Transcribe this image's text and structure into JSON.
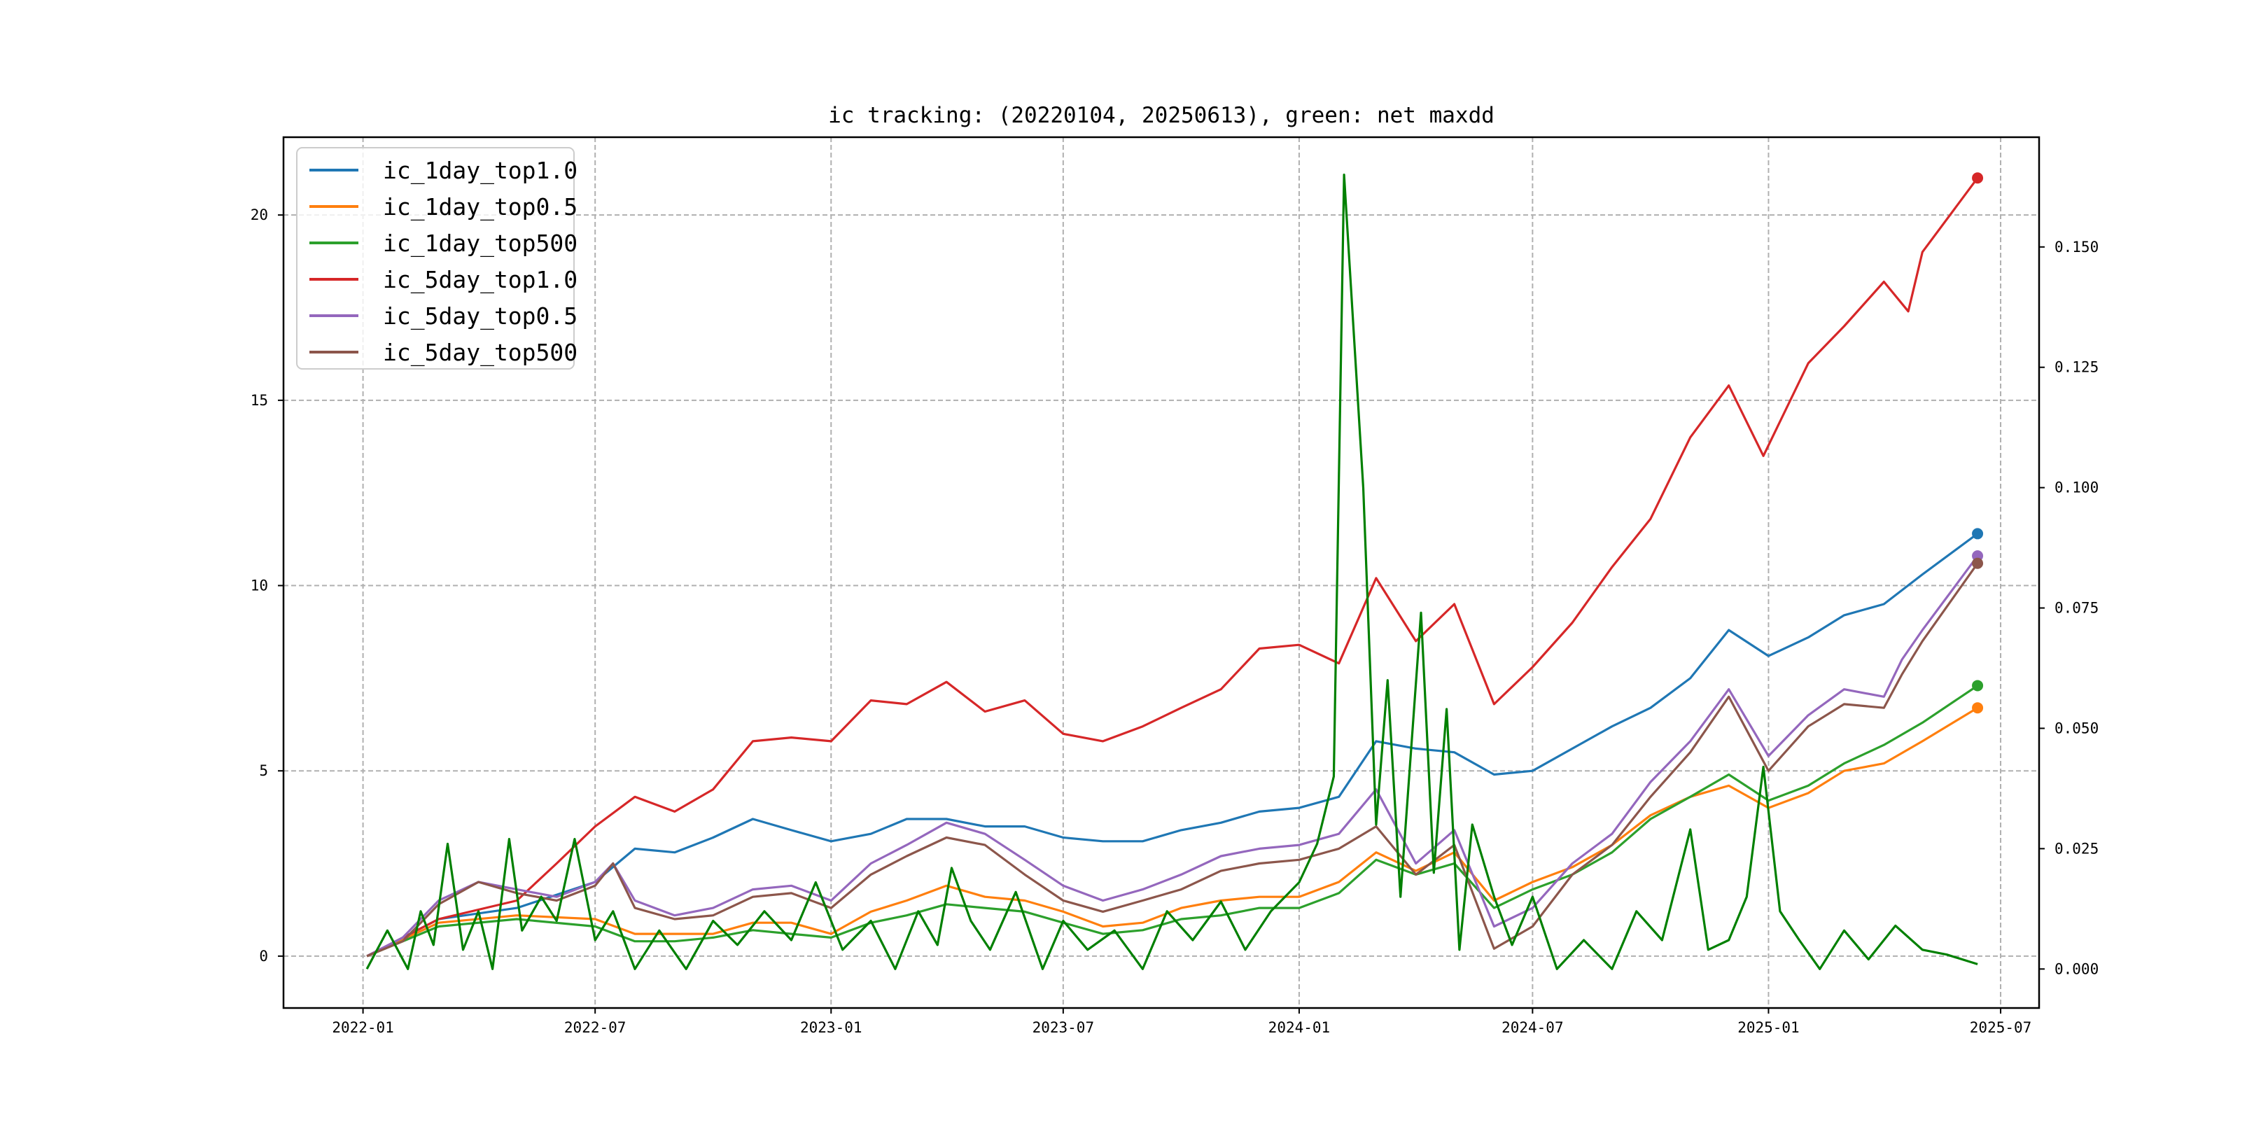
{
  "chart_data": {
    "type": "line",
    "title": "ic tracking: (20220104, 20250613), green: net maxdd",
    "xlabel": "",
    "ylabel": "",
    "xlim": [
      "2021-10-31",
      "2025-07-31"
    ],
    "ylim": [
      -1.4,
      22.1
    ],
    "y2lim": [
      -0.0081,
      0.1728
    ],
    "grid": true,
    "legend_position": "top-left",
    "x_ticks": [
      "2022-01",
      "2022-07",
      "2023-01",
      "2023-07",
      "2024-01",
      "2024-07",
      "2025-01",
      "2025-07"
    ],
    "y_ticks": [
      "0",
      "5",
      "10",
      "15",
      "20"
    ],
    "y2_ticks": [
      "0.000",
      "0.025",
      "0.050",
      "0.075",
      "0.100",
      "0.125",
      "0.150"
    ],
    "series": [
      {
        "name": "ic_1day_top1.0",
        "color": "#1f77b4",
        "axis": "left",
        "x": [
          "2022-01-04",
          "2022-03-01",
          "2022-05-01",
          "2022-07-01",
          "2022-08-01",
          "2022-09-01",
          "2022-10-01",
          "2022-11-01",
          "2022-12-01",
          "2023-01-01",
          "2023-02-01",
          "2023-03-01",
          "2023-04-01",
          "2023-05-01",
          "2023-06-01",
          "2023-07-01",
          "2023-08-01",
          "2023-09-01",
          "2023-10-01",
          "2023-11-01",
          "2023-12-01",
          "2024-01-01",
          "2024-02-01",
          "2024-03-01",
          "2024-04-01",
          "2024-05-01",
          "2024-06-01",
          "2024-07-01",
          "2024-08-01",
          "2024-09-01",
          "2024-10-01",
          "2024-11-01",
          "2024-12-01",
          "2025-01-01",
          "2025-02-01",
          "2025-03-01",
          "2025-04-01",
          "2025-05-01",
          "2025-06-13"
        ],
        "values": [
          0,
          1.0,
          1.3,
          2.0,
          2.9,
          2.8,
          3.2,
          3.7,
          3.4,
          3.1,
          3.3,
          3.7,
          3.7,
          3.5,
          3.5,
          3.2,
          3.1,
          3.1,
          3.4,
          3.6,
          3.9,
          4.0,
          4.3,
          5.8,
          5.6,
          5.5,
          4.9,
          5.0,
          5.6,
          6.2,
          6.7,
          7.5,
          8.8,
          8.1,
          8.6,
          9.2,
          9.5,
          10.3,
          11.4
        ]
      },
      {
        "name": "ic_1day_top0.5",
        "color": "#ff7f0e",
        "axis": "left",
        "x": [
          "2022-01-04",
          "2022-03-01",
          "2022-05-01",
          "2022-07-01",
          "2022-08-01",
          "2022-09-01",
          "2022-10-01",
          "2022-11-01",
          "2022-12-01",
          "2023-01-01",
          "2023-02-01",
          "2023-03-01",
          "2023-04-01",
          "2023-05-01",
          "2023-06-01",
          "2023-07-01",
          "2023-08-01",
          "2023-09-01",
          "2023-10-01",
          "2023-11-01",
          "2023-12-01",
          "2024-01-01",
          "2024-02-01",
          "2024-03-01",
          "2024-04-01",
          "2024-05-01",
          "2024-06-01",
          "2024-07-01",
          "2024-08-01",
          "2024-09-01",
          "2024-10-01",
          "2024-11-01",
          "2024-12-01",
          "2025-01-01",
          "2025-02-01",
          "2025-03-01",
          "2025-04-01",
          "2025-05-01",
          "2025-06-13"
        ],
        "values": [
          0,
          0.9,
          1.1,
          1.0,
          0.6,
          0.6,
          0.6,
          0.9,
          0.9,
          0.6,
          1.2,
          1.5,
          1.9,
          1.6,
          1.5,
          1.2,
          0.8,
          0.9,
          1.3,
          1.5,
          1.6,
          1.6,
          2.0,
          2.8,
          2.3,
          2.8,
          1.5,
          2.0,
          2.4,
          3.0,
          3.8,
          4.3,
          4.6,
          4.0,
          4.4,
          5.0,
          5.2,
          5.8,
          6.7
        ]
      },
      {
        "name": "ic_1day_top500",
        "color": "#2ca02c",
        "axis": "left",
        "x": [
          "2022-01-04",
          "2022-03-01",
          "2022-05-01",
          "2022-07-01",
          "2022-08-01",
          "2022-09-01",
          "2022-10-01",
          "2022-11-01",
          "2022-12-01",
          "2023-01-01",
          "2023-02-01",
          "2023-03-01",
          "2023-04-01",
          "2023-05-01",
          "2023-06-01",
          "2023-07-01",
          "2023-08-01",
          "2023-09-01",
          "2023-10-01",
          "2023-11-01",
          "2023-12-01",
          "2024-01-01",
          "2024-02-01",
          "2024-03-01",
          "2024-04-01",
          "2024-05-01",
          "2024-06-01",
          "2024-07-01",
          "2024-08-01",
          "2024-09-01",
          "2024-10-01",
          "2024-11-01",
          "2024-12-01",
          "2025-01-01",
          "2025-02-01",
          "2025-03-01",
          "2025-04-01",
          "2025-05-01",
          "2025-06-13"
        ],
        "values": [
          0,
          0.8,
          1.0,
          0.8,
          0.4,
          0.4,
          0.5,
          0.7,
          0.6,
          0.5,
          0.9,
          1.1,
          1.4,
          1.3,
          1.2,
          0.9,
          0.6,
          0.7,
          1.0,
          1.1,
          1.3,
          1.3,
          1.7,
          2.6,
          2.2,
          2.5,
          1.3,
          1.8,
          2.2,
          2.8,
          3.7,
          4.3,
          4.9,
          4.2,
          4.6,
          5.2,
          5.7,
          6.3,
          7.3
        ]
      },
      {
        "name": "ic_5day_top1.0",
        "color": "#d62728",
        "axis": "left",
        "x": [
          "2022-01-04",
          "2022-03-01",
          "2022-05-01",
          "2022-06-01",
          "2022-07-01",
          "2022-08-01",
          "2022-09-01",
          "2022-10-01",
          "2022-11-01",
          "2022-12-01",
          "2023-01-01",
          "2023-02-01",
          "2023-03-01",
          "2023-04-01",
          "2023-05-01",
          "2023-06-01",
          "2023-07-01",
          "2023-08-01",
          "2023-09-01",
          "2023-10-01",
          "2023-11-01",
          "2023-12-01",
          "2024-01-01",
          "2024-02-01",
          "2024-03-01",
          "2024-04-01",
          "2024-05-01",
          "2024-06-01",
          "2024-07-01",
          "2024-08-01",
          "2024-09-01",
          "2024-10-01",
          "2024-11-01",
          "2024-12-01",
          "2024-12-28",
          "2025-02-01",
          "2025-03-01",
          "2025-04-01",
          "2025-04-20",
          "2025-05-01",
          "2025-06-13"
        ],
        "values": [
          0,
          1.0,
          1.5,
          2.5,
          3.5,
          4.3,
          3.9,
          4.5,
          5.8,
          5.9,
          5.8,
          6.9,
          6.8,
          7.4,
          6.6,
          6.9,
          6.0,
          5.8,
          6.2,
          6.7,
          7.2,
          8.3,
          8.4,
          7.9,
          10.2,
          8.5,
          9.5,
          6.8,
          7.8,
          9.0,
          10.5,
          11.8,
          14.0,
          15.4,
          13.5,
          16.0,
          17.0,
          18.2,
          17.4,
          19.0,
          21.0
        ]
      },
      {
        "name": "ic_5day_top0.5",
        "color": "#9467bd",
        "axis": "left",
        "x": [
          "2022-01-04",
          "2022-02-01",
          "2022-03-01",
          "2022-04-01",
          "2022-05-01",
          "2022-06-01",
          "2022-07-01",
          "2022-07-15",
          "2022-08-01",
          "2022-09-01",
          "2022-10-01",
          "2022-11-01",
          "2022-12-01",
          "2023-01-01",
          "2023-02-01",
          "2023-03-01",
          "2023-04-01",
          "2023-05-01",
          "2023-06-01",
          "2023-07-01",
          "2023-08-01",
          "2023-09-01",
          "2023-10-01",
          "2023-11-01",
          "2023-12-01",
          "2024-01-01",
          "2024-02-01",
          "2024-03-01",
          "2024-04-01",
          "2024-05-01",
          "2024-06-01",
          "2024-07-01",
          "2024-08-01",
          "2024-09-01",
          "2024-10-01",
          "2024-11-01",
          "2024-12-01",
          "2025-01-01",
          "2025-02-01",
          "2025-03-01",
          "2025-04-01",
          "2025-04-15",
          "2025-05-01",
          "2025-06-13"
        ],
        "values": [
          0,
          0.5,
          1.5,
          2.0,
          1.8,
          1.6,
          2.0,
          2.5,
          1.5,
          1.1,
          1.3,
          1.8,
          1.9,
          1.5,
          2.5,
          3.0,
          3.6,
          3.3,
          2.6,
          1.9,
          1.5,
          1.8,
          2.2,
          2.7,
          2.9,
          3.0,
          3.3,
          4.5,
          2.5,
          3.4,
          0.8,
          1.3,
          2.5,
          3.3,
          4.7,
          5.8,
          7.2,
          5.4,
          6.5,
          7.2,
          7.0,
          8.0,
          8.8,
          10.8
        ]
      },
      {
        "name": "ic_5day_top500",
        "color": "#8c564b",
        "axis": "left",
        "x": [
          "2022-01-04",
          "2022-02-01",
          "2022-03-01",
          "2022-04-01",
          "2022-05-01",
          "2022-06-01",
          "2022-07-01",
          "2022-07-15",
          "2022-08-01",
          "2022-09-01",
          "2022-10-01",
          "2022-11-01",
          "2022-12-01",
          "2023-01-01",
          "2023-02-01",
          "2023-03-01",
          "2023-04-01",
          "2023-05-01",
          "2023-06-01",
          "2023-07-01",
          "2023-08-01",
          "2023-09-01",
          "2023-10-01",
          "2023-11-01",
          "2023-12-01",
          "2024-01-01",
          "2024-02-01",
          "2024-03-01",
          "2024-04-01",
          "2024-05-01",
          "2024-06-01",
          "2024-07-01",
          "2024-08-01",
          "2024-09-01",
          "2024-10-01",
          "2024-11-01",
          "2024-12-01",
          "2025-01-01",
          "2025-02-01",
          "2025-03-01",
          "2025-04-01",
          "2025-04-15",
          "2025-05-01",
          "2025-06-13"
        ],
        "values": [
          0,
          0.4,
          1.4,
          2.0,
          1.7,
          1.5,
          1.9,
          2.5,
          1.3,
          1.0,
          1.1,
          1.6,
          1.7,
          1.3,
          2.2,
          2.7,
          3.2,
          3.0,
          2.2,
          1.5,
          1.2,
          1.5,
          1.8,
          2.3,
          2.5,
          2.6,
          2.9,
          3.5,
          2.2,
          3.0,
          0.2,
          0.8,
          2.2,
          3.0,
          4.3,
          5.5,
          7.0,
          5.0,
          6.2,
          6.8,
          6.7,
          7.6,
          8.5,
          10.6
        ]
      },
      {
        "name": "net maxdd",
        "color": "#008000",
        "axis": "right",
        "legend": false,
        "x": [
          "2022-01-04",
          "2022-01-20",
          "2022-02-05",
          "2022-02-15",
          "2022-02-25",
          "2022-03-08",
          "2022-03-20",
          "2022-04-01",
          "2022-04-12",
          "2022-04-25",
          "2022-05-05",
          "2022-05-20",
          "2022-06-01",
          "2022-06-15",
          "2022-07-01",
          "2022-07-15",
          "2022-08-01",
          "2022-08-20",
          "2022-09-10",
          "2022-10-01",
          "2022-10-20",
          "2022-11-10",
          "2022-12-01",
          "2022-12-20",
          "2023-01-10",
          "2023-02-01",
          "2023-02-20",
          "2023-03-10",
          "2023-03-25",
          "2023-04-05",
          "2023-04-20",
          "2023-05-05",
          "2023-05-25",
          "2023-06-15",
          "2023-07-01",
          "2023-07-20",
          "2023-08-10",
          "2023-09-01",
          "2023-09-20",
          "2023-10-10",
          "2023-11-01",
          "2023-11-20",
          "2023-12-10",
          "2024-01-01",
          "2024-01-15",
          "2024-01-28",
          "2024-02-05",
          "2024-02-20",
          "2024-03-01",
          "2024-03-10",
          "2024-03-20",
          "2024-04-05",
          "2024-04-15",
          "2024-04-25",
          "2024-05-05",
          "2024-05-15",
          "2024-06-01",
          "2024-06-15",
          "2024-07-01",
          "2024-07-20",
          "2024-08-10",
          "2024-09-01",
          "2024-09-20",
          "2024-10-10",
          "2024-11-01",
          "2024-11-15",
          "2024-12-01",
          "2024-12-15",
          "2024-12-28",
          "2025-01-10",
          "2025-01-25",
          "2025-02-10",
          "2025-03-01",
          "2025-03-20",
          "2025-04-10",
          "2025-05-01",
          "2025-05-20",
          "2025-06-13"
        ],
        "values": [
          0,
          0.008,
          0,
          0.012,
          0.005,
          0.026,
          0.004,
          0.012,
          0,
          0.027,
          0.008,
          0.015,
          0.01,
          0.027,
          0.006,
          0.012,
          0,
          0.008,
          0,
          0.01,
          0.005,
          0.012,
          0.006,
          0.018,
          0.004,
          0.01,
          0,
          0.012,
          0.005,
          0.021,
          0.01,
          0.004,
          0.016,
          0,
          0.01,
          0.004,
          0.008,
          0,
          0.012,
          0.006,
          0.014,
          0.004,
          0.012,
          0.018,
          0.026,
          0.04,
          0.165,
          0.1,
          0.03,
          0.06,
          0.015,
          0.074,
          0.02,
          0.054,
          0.004,
          0.03,
          0.015,
          0.005,
          0.015,
          0,
          0.006,
          0,
          0.012,
          0.006,
          0.029,
          0.004,
          0.006,
          0.015,
          0.042,
          0.012,
          0.006,
          0,
          0.008,
          0.002,
          0.009,
          0.004,
          0.003,
          0.001
        ]
      }
    ]
  }
}
